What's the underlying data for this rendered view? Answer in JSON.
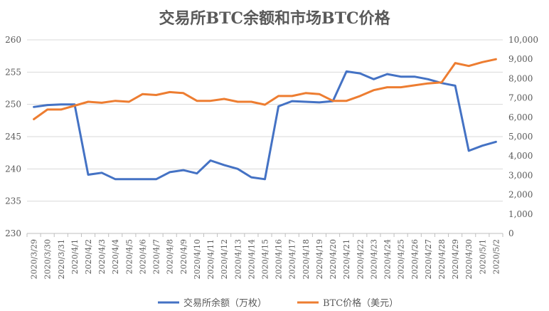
{
  "chart_data": {
    "type": "line",
    "title": "交易所BTC余额和市场BTC价格",
    "x": [
      "2020/3/29",
      "2020/3/30",
      "2020/3/31",
      "2020/4/1",
      "2020/4/2",
      "2020/4/3",
      "2020/4/4",
      "2020/4/5",
      "2020/4/6",
      "2020/4/7",
      "2020/4/8",
      "2020/4/9",
      "2020/4/10",
      "2020/4/11",
      "2020/4/12",
      "2020/4/13",
      "2020/4/14",
      "2020/4/15",
      "2020/4/16",
      "2020/4/17",
      "2020/4/18",
      "2020/4/19",
      "2020/4/20",
      "2020/4/21",
      "2020/4/22",
      "2020/4/23",
      "2020/4/24",
      "2020/4/25",
      "2020/4/26",
      "2020/4/27",
      "2020/4/28",
      "2020/4/29",
      "2020/4/30",
      "2020/5/1",
      "2020/5/2"
    ],
    "y_left": {
      "min": 230,
      "max": 260,
      "ticks": [
        "230",
        "235",
        "240",
        "245",
        "250",
        "255",
        "260"
      ]
    },
    "y_right": {
      "min": 0,
      "max": 10000,
      "ticks": [
        "0",
        "1,000",
        "2,000",
        "3,000",
        "4,000",
        "5,000",
        "6,000",
        "7,000",
        "8,000",
        "9,000",
        "10,000"
      ]
    },
    "series": [
      {
        "name": "交易所余额（万枚）",
        "axis": "left",
        "color": "#4472C4",
        "values": [
          249.6,
          249.9,
          250.0,
          250.0,
          239.1,
          239.4,
          238.4,
          238.4,
          238.4,
          238.4,
          239.5,
          239.8,
          239.3,
          241.3,
          240.6,
          240.0,
          238.7,
          238.4,
          249.7,
          250.5,
          250.4,
          250.3,
          250.5,
          255.1,
          254.8,
          253.9,
          254.7,
          254.3,
          254.3,
          253.9,
          253.3,
          252.9,
          242.8,
          243.6,
          244.2
        ]
      },
      {
        "name": "BTC价格（美元）",
        "axis": "right",
        "color": "#ED7D31",
        "values": [
          5900,
          6400,
          6400,
          6600,
          6800,
          6750,
          6850,
          6800,
          7200,
          7150,
          7300,
          7250,
          6850,
          6850,
          6950,
          6800,
          6800,
          6650,
          7100,
          7100,
          7250,
          7200,
          6850,
          6850,
          7100,
          7400,
          7550,
          7550,
          7650,
          7750,
          7800,
          8800,
          8650,
          8850,
          9000
        ]
      }
    ],
    "legend_position": "bottom"
  }
}
